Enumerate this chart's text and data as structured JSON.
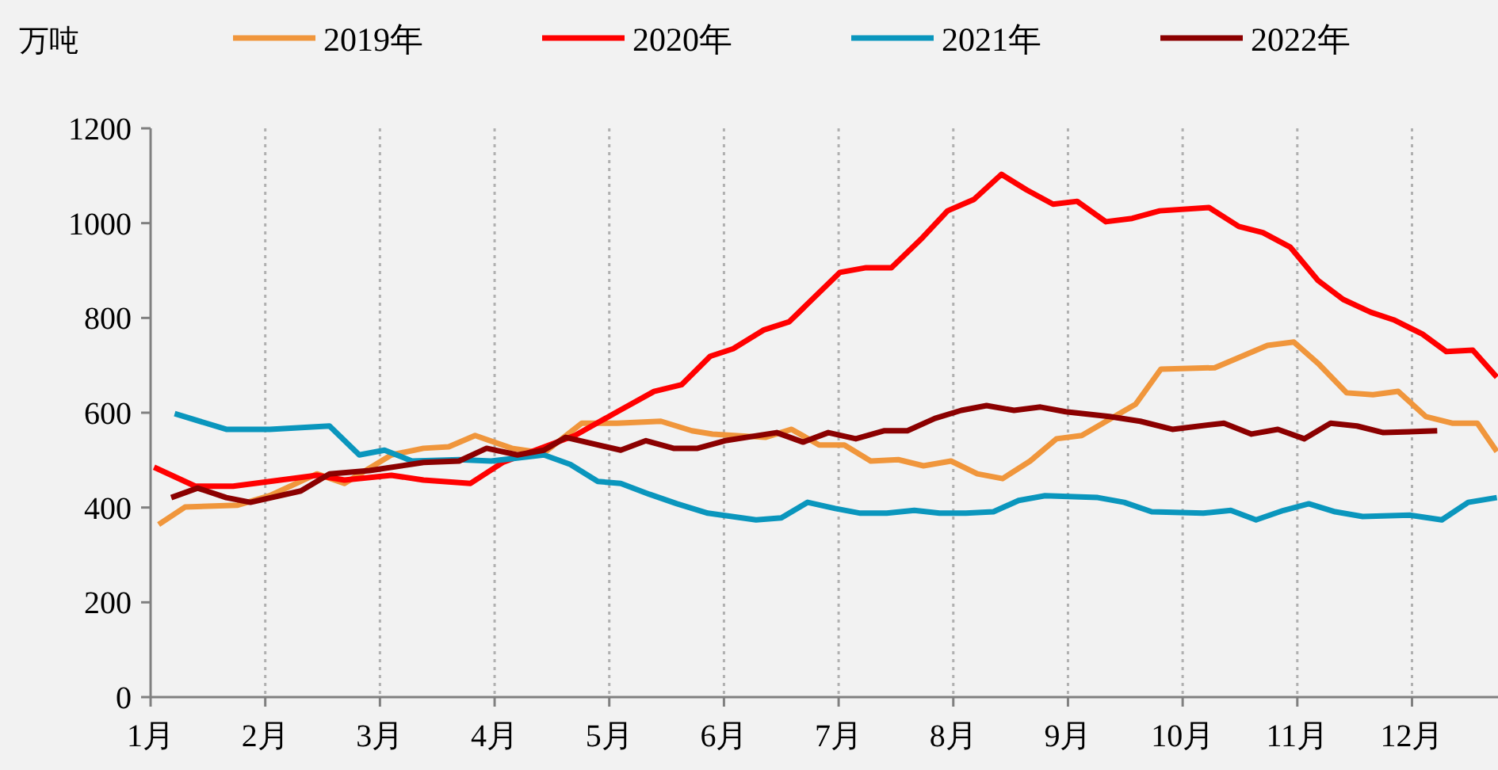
{
  "chart_data": {
    "type": "line",
    "ylabel": "万吨",
    "xlim": [
      1,
      12.75
    ],
    "ylim": [
      0,
      1200
    ],
    "xticks": [
      {
        "value": 1,
        "label": "1月"
      },
      {
        "value": 2,
        "label": "2月"
      },
      {
        "value": 3,
        "label": "3月"
      },
      {
        "value": 4,
        "label": "4月"
      },
      {
        "value": 5,
        "label": "5月"
      },
      {
        "value": 6,
        "label": "6月"
      },
      {
        "value": 7,
        "label": "7月"
      },
      {
        "value": 8,
        "label": "8月"
      },
      {
        "value": 9,
        "label": "9月"
      },
      {
        "value": 10,
        "label": "10月"
      },
      {
        "value": 11,
        "label": "11月"
      },
      {
        "value": 12,
        "label": "12月"
      }
    ],
    "yticks": [
      0,
      200,
      400,
      600,
      800,
      1000,
      1200
    ],
    "grid": "x",
    "legend": "top",
    "marker": "none",
    "line_style": "solid",
    "series": [
      {
        "name": "2019年",
        "color": "#f0963c",
        "x": [
          1.07,
          1.3,
          1.76,
          2.04,
          2.45,
          2.69,
          3.1,
          3.38,
          3.6,
          3.83,
          4.15,
          4.43,
          4.76,
          5.07,
          5.45,
          5.72,
          5.9,
          6.36,
          6.59,
          6.83,
          7.05,
          7.28,
          7.52,
          7.74,
          7.98,
          8.21,
          8.43,
          8.67,
          8.9,
          9.12,
          9.59,
          9.81,
          10.28,
          10.74,
          10.97,
          11.19,
          11.43,
          11.66,
          11.88,
          12.12,
          12.35,
          12.57,
          12.74
        ],
        "values": [
          364,
          401,
          405,
          425,
          471,
          451,
          511,
          525,
          528,
          552,
          525,
          515,
          578,
          578,
          582,
          562,
          555,
          548,
          565,
          532,
          532,
          498,
          501,
          488,
          498,
          471,
          461,
          498,
          545,
          552,
          618,
          692,
          695,
          742,
          749,
          702,
          642,
          638,
          645,
          592,
          578,
          578,
          518
        ]
      },
      {
        "name": "2020年",
        "color": "#ff0000",
        "x": [
          1.03,
          1.39,
          1.72,
          2.45,
          2.69,
          3.1,
          3.38,
          3.79,
          4.07,
          4.7,
          5.07,
          5.39,
          5.63,
          5.88,
          6.08,
          6.35,
          6.57,
          7.01,
          7.24,
          7.46,
          7.73,
          7.95,
          8.18,
          8.42,
          8.64,
          8.87,
          9.08,
          9.33,
          9.56,
          9.8,
          10.23,
          10.49,
          10.7,
          10.94,
          11.18,
          11.4,
          11.64,
          11.84,
          12.09,
          12.3,
          12.53,
          12.74
        ],
        "values": [
          485,
          445,
          445,
          468,
          458,
          468,
          458,
          451,
          495,
          552,
          602,
          645,
          659,
          719,
          735,
          775,
          792,
          896,
          906,
          906,
          969,
          1026,
          1050,
          1103,
          1070,
          1040,
          1046,
          1003,
          1010,
          1026,
          1033,
          993,
          980,
          949,
          879,
          839,
          812,
          796,
          766,
          729,
          732,
          675
        ]
      },
      {
        "name": "2021年",
        "color": "#0a96bd",
        "x": [
          1.21,
          1.66,
          2.04,
          2.56,
          2.82,
          3.04,
          3.28,
          3.69,
          3.97,
          4.43,
          4.66,
          4.9,
          5.1,
          5.35,
          5.59,
          5.86,
          6.28,
          6.5,
          6.73,
          6.97,
          7.19,
          7.42,
          7.66,
          7.88,
          8.11,
          8.35,
          8.57,
          8.8,
          9.26,
          9.49,
          9.73,
          10.18,
          10.42,
          10.64,
          10.88,
          11.1,
          11.33,
          11.57,
          11.98,
          12.26,
          12.49,
          12.74
        ],
        "values": [
          598,
          565,
          565,
          572,
          511,
          521,
          498,
          501,
          498,
          511,
          491,
          455,
          451,
          428,
          408,
          388,
          374,
          378,
          411,
          398,
          388,
          388,
          394,
          388,
          388,
          391,
          415,
          425,
          421,
          411,
          391,
          388,
          394,
          374,
          394,
          408,
          391,
          381,
          384,
          374,
          411,
          421
        ]
      },
      {
        "name": "2022年",
        "color": "#8b0000",
        "x": [
          1.18,
          1.41,
          1.66,
          1.87,
          2.31,
          2.56,
          2.91,
          3.38,
          3.69,
          3.93,
          4.2,
          4.43,
          4.62,
          5.1,
          5.32,
          5.56,
          5.77,
          6.01,
          6.46,
          6.69,
          6.91,
          7.15,
          7.4,
          7.6,
          7.84,
          8.07,
          8.29,
          8.53,
          8.76,
          8.98,
          9.36,
          9.63,
          9.91,
          10.36,
          10.6,
          10.83,
          11.06,
          11.29,
          11.52,
          11.75,
          12.22
        ],
        "values": [
          421,
          441,
          421,
          411,
          435,
          471,
          478,
          495,
          498,
          525,
          511,
          521,
          548,
          521,
          541,
          525,
          525,
          541,
          558,
          538,
          558,
          545,
          562,
          562,
          588,
          605,
          615,
          605,
          612,
          602,
          592,
          582,
          565,
          578,
          555,
          565,
          545,
          578,
          572,
          558,
          562
        ]
      }
    ]
  }
}
